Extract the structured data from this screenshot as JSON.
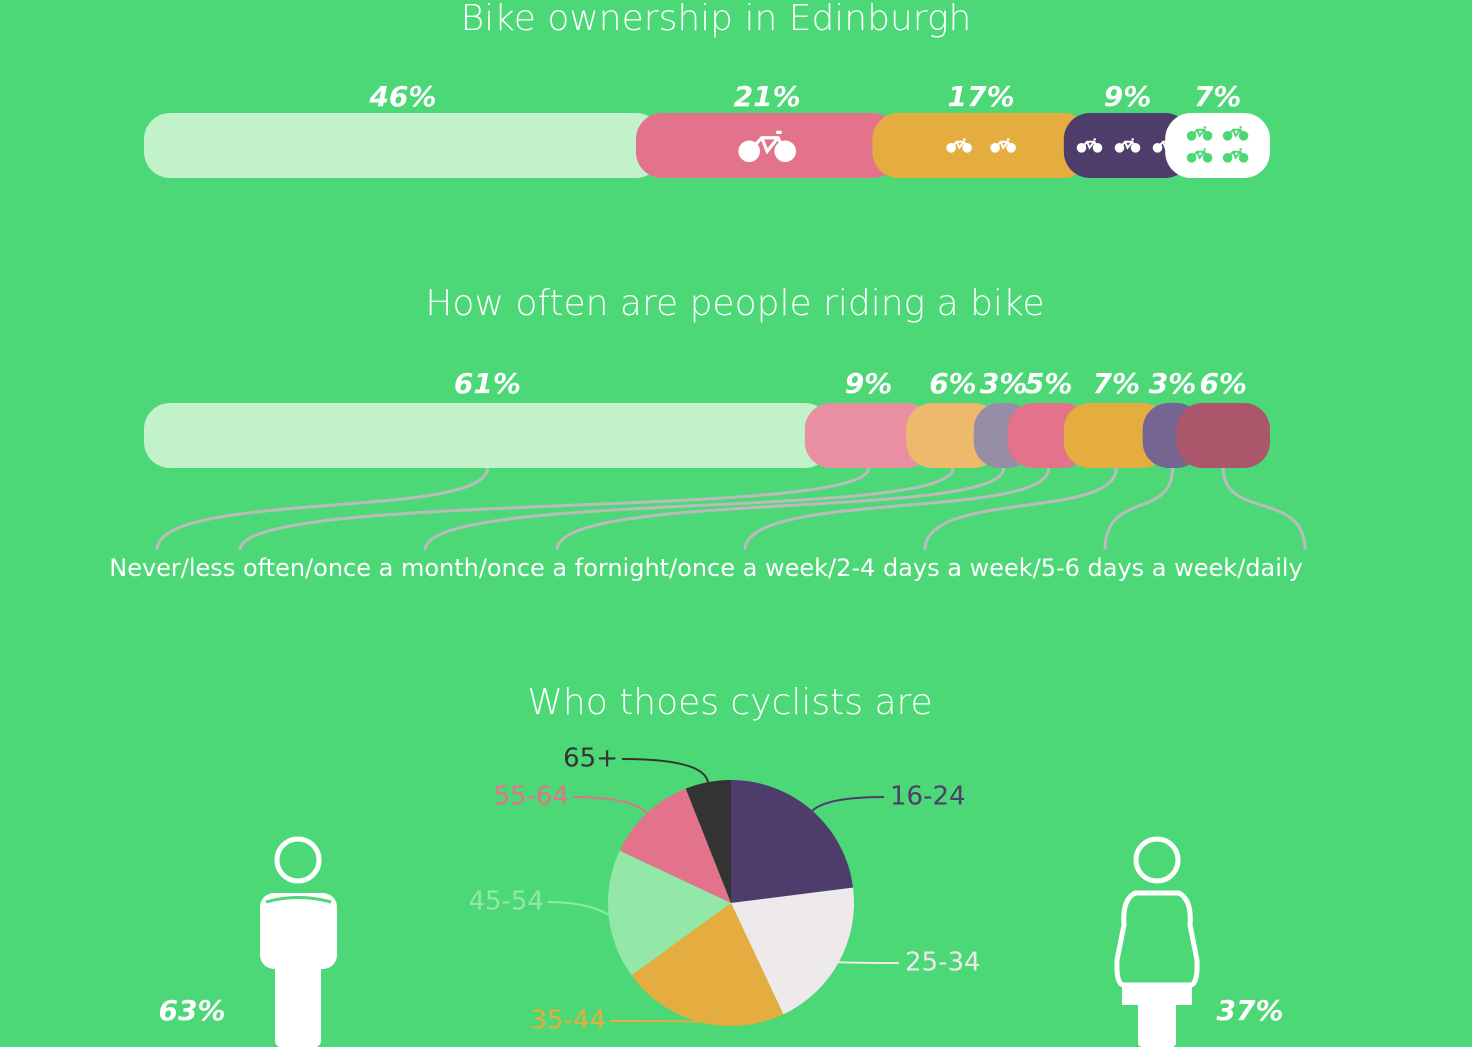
{
  "chart_data": [
    {
      "type": "stacked-bar",
      "title": "Bike ownership in Edinburgh",
      "values": [
        46,
        21,
        17,
        9,
        7
      ],
      "value_labels": [
        "46%",
        "21%",
        "17%",
        "9%",
        "7%"
      ],
      "colors": [
        "#c2f2c9",
        "#e2738b",
        "#e5ac40",
        "#4e3d6b",
        "#ffffff"
      ]
    },
    {
      "type": "stacked-bar",
      "title": "How often are people riding a bike",
      "values": [
        61,
        9,
        6,
        3,
        5,
        7,
        3,
        6
      ],
      "value_labels": [
        "61%",
        "9%",
        "6%",
        "3%",
        "5%",
        "7%",
        "3%",
        "6%"
      ],
      "colors": [
        "#c2f2c9",
        "#e88fa2",
        "#ecba6a",
        "#968ea6",
        "#e2738b",
        "#e5ac40",
        "#746690",
        "#ab566b"
      ],
      "caption": "Never/less often/once a month/once a fornight/once a week/2-4 days a week/5-6 days a week/daily"
    },
    {
      "type": "pie",
      "title": "Who thoes cyclists are",
      "categories": [
        "16-24",
        "25-34",
        "35-44",
        "45-54",
        "55-64",
        "65+"
      ],
      "values": [
        23,
        20,
        22,
        17,
        12,
        6
      ],
      "colors": [
        "#4e3d6b",
        "#eeeaec",
        "#e5ac40",
        "#93e8a8",
        "#e2738b",
        "#333333"
      ]
    },
    {
      "type": "gender",
      "values": [
        63,
        37
      ],
      "value_labels": [
        "63%",
        "37%"
      ],
      "color": "#ffffff"
    }
  ]
}
